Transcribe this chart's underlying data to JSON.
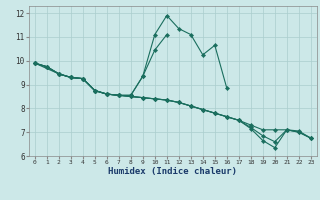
{
  "xlabel": "Humidex (Indice chaleur)",
  "bg_color": "#cce8e8",
  "grid_color": "#aacece",
  "line_color": "#1a6e5e",
  "xlim": [
    -0.5,
    23.5
  ],
  "ylim": [
    6,
    12.3
  ],
  "xticks": [
    0,
    1,
    2,
    3,
    4,
    5,
    6,
    7,
    8,
    9,
    10,
    11,
    12,
    13,
    14,
    15,
    16,
    17,
    18,
    19,
    20,
    21,
    22,
    23
  ],
  "yticks": [
    6,
    7,
    8,
    9,
    10,
    11,
    12
  ],
  "lines": [
    {
      "x": [
        0,
        1,
        2,
        3,
        4,
        5,
        6,
        7,
        8,
        9,
        10,
        11,
        12,
        13,
        14,
        15,
        16
      ],
      "y": [
        9.9,
        9.75,
        9.45,
        9.3,
        9.25,
        8.75,
        8.6,
        8.55,
        8.55,
        9.35,
        11.1,
        11.9,
        11.35,
        11.1,
        10.25,
        10.65,
        8.85
      ]
    },
    {
      "x": [
        0,
        2,
        3,
        4,
        5,
        6,
        7,
        8,
        9,
        10,
        11
      ],
      "y": [
        9.9,
        9.45,
        9.3,
        9.25,
        8.75,
        8.6,
        8.55,
        8.55,
        9.35,
        10.45,
        11.1
      ]
    },
    {
      "x": [
        0,
        1,
        2,
        3,
        4,
        5,
        6,
        7,
        8,
        9,
        10,
        11,
        12,
        13,
        14,
        15,
        16,
        17,
        18,
        19,
        20,
        21,
        22,
        23
      ],
      "y": [
        9.9,
        9.75,
        9.45,
        9.3,
        9.25,
        8.75,
        8.6,
        8.55,
        8.5,
        8.45,
        8.4,
        8.35,
        8.25,
        8.1,
        7.95,
        7.8,
        7.65,
        7.5,
        7.3,
        7.1,
        7.1,
        7.1,
        7.0,
        6.75
      ]
    },
    {
      "x": [
        0,
        1,
        2,
        3,
        4,
        5,
        6,
        7,
        8,
        9,
        10,
        11,
        12,
        13,
        14,
        15,
        16,
        17,
        18,
        19,
        20,
        21,
        22,
        23
      ],
      "y": [
        9.9,
        9.75,
        9.45,
        9.3,
        9.25,
        8.75,
        8.6,
        8.55,
        8.5,
        8.45,
        8.4,
        8.35,
        8.25,
        8.1,
        7.95,
        7.8,
        7.65,
        7.5,
        7.15,
        6.65,
        6.35,
        7.1,
        7.0,
        6.75
      ]
    },
    {
      "x": [
        0,
        1,
        2,
        3,
        4,
        5,
        6,
        7,
        8,
        9,
        10,
        11,
        12,
        13,
        14,
        15,
        16,
        17,
        18,
        19,
        20,
        21,
        22,
        23
      ],
      "y": [
        9.9,
        9.75,
        9.45,
        9.3,
        9.25,
        8.75,
        8.6,
        8.55,
        8.5,
        8.45,
        8.4,
        8.35,
        8.25,
        8.1,
        7.95,
        7.8,
        7.65,
        7.5,
        7.2,
        6.85,
        6.6,
        7.1,
        7.05,
        6.75
      ]
    }
  ]
}
